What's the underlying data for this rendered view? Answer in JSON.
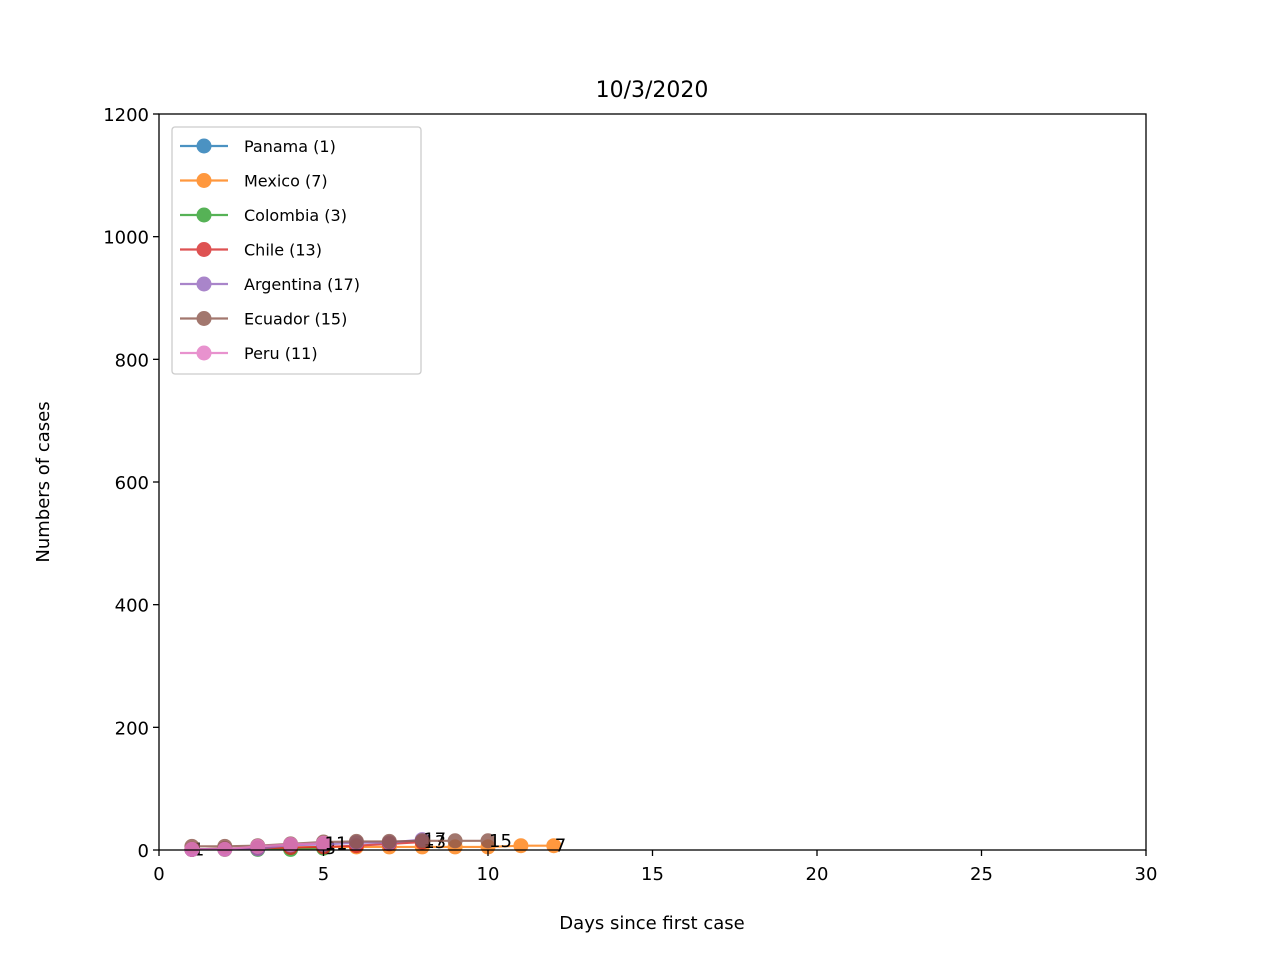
{
  "chart_data": {
    "type": "line",
    "title": "10/3/2020",
    "xlabel": "Days since first case",
    "ylabel": "Numbers of cases",
    "xlim": [
      0,
      30
    ],
    "ylim": [
      0,
      1200
    ],
    "xticks": [
      0,
      5,
      10,
      15,
      20,
      25,
      30
    ],
    "yticks": [
      0,
      200,
      400,
      600,
      800,
      1000,
      1200
    ],
    "grid": false,
    "legend_position": "upper-left",
    "series": [
      {
        "name": "Panama (1)",
        "color": "#1f77b4",
        "end_label": "1",
        "x": [
          1
        ],
        "y": [
          1
        ]
      },
      {
        "name": "Mexico (7)",
        "color": "#ff7f0e",
        "end_label": "7",
        "x": [
          1,
          2,
          3,
          4,
          5,
          6,
          7,
          8,
          9,
          10,
          11,
          12
        ],
        "y": [
          1,
          2,
          3,
          4,
          5,
          5,
          5,
          5,
          5,
          5,
          7,
          7
        ]
      },
      {
        "name": "Colombia (3)",
        "color": "#2ca02c",
        "end_label": "3",
        "x": [
          1,
          2,
          3,
          4,
          5
        ],
        "y": [
          1,
          1,
          1,
          1,
          3
        ]
      },
      {
        "name": "Chile (13)",
        "color": "#d62728",
        "end_label": "13",
        "x": [
          1,
          2,
          3,
          4,
          5,
          6,
          7,
          8
        ],
        "y": [
          1,
          2,
          3,
          4,
          5,
          7,
          10,
          13
        ]
      },
      {
        "name": "Argentina (17)",
        "color": "#9467bd",
        "end_label": "17",
        "x": [
          1,
          2,
          3,
          4,
          5,
          6,
          7,
          8
        ],
        "y": [
          1,
          2,
          2,
          8,
          9,
          12,
          12,
          17
        ]
      },
      {
        "name": "Ecuador (15)",
        "color": "#8c564b",
        "end_label": "15",
        "x": [
          1,
          2,
          3,
          4,
          5,
          6,
          7,
          8,
          9,
          10
        ],
        "y": [
          6,
          6,
          7,
          10,
          13,
          14,
          14,
          15,
          15,
          15
        ]
      },
      {
        "name": "Peru (11)",
        "color": "#e377c2",
        "end_label": "11",
        "x": [
          1,
          2,
          3,
          4,
          5
        ],
        "y": [
          1,
          1,
          6,
          9,
          11
        ]
      }
    ]
  }
}
